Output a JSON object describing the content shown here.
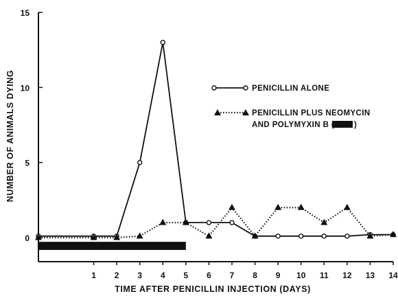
{
  "chart_data": {
    "type": "line",
    "xlabel": "TIME AFTER PENICILLIN INJECTION (DAYS)",
    "ylabel": "NUMBER OF ANIMALS DYING",
    "xlim": [
      -1.4,
      14
    ],
    "ylim": [
      -1.6,
      15
    ],
    "x_ticks": [
      1,
      2,
      3,
      4,
      5,
      6,
      7,
      8,
      9,
      10,
      11,
      12,
      13,
      14
    ],
    "y_ticks": [
      0,
      5,
      10,
      15
    ],
    "grid": false,
    "legend_placement": "center-right",
    "treatment_bar": {
      "start": -1.4,
      "end": 5
    },
    "series": [
      {
        "name": "PENICILLIN ALONE",
        "marker": "open-circle",
        "line": "solid",
        "x": [
          -1.4,
          1,
          2,
          3,
          4,
          5,
          6,
          7,
          8,
          9,
          10,
          11,
          12,
          13,
          14
        ],
        "y": [
          0.1,
          0.1,
          0.1,
          5,
          13,
          1,
          1,
          1,
          0.1,
          0.1,
          0.1,
          0.1,
          0.1,
          0.2,
          0.2
        ]
      },
      {
        "name": "PENICILLIN PLUS NEOMYCIN AND POLYMYXIN B (",
        "name_suffix": ")",
        "marker": "filled-triangle",
        "line": "dotted",
        "x": [
          -1.4,
          1,
          2,
          3,
          4,
          5,
          6,
          7,
          8,
          9,
          10,
          11,
          12,
          13,
          14
        ],
        "y": [
          0,
          0,
          0,
          0.1,
          1,
          1,
          0.1,
          2,
          0.1,
          2,
          2,
          1,
          2,
          0.1,
          0.2
        ]
      }
    ]
  }
}
